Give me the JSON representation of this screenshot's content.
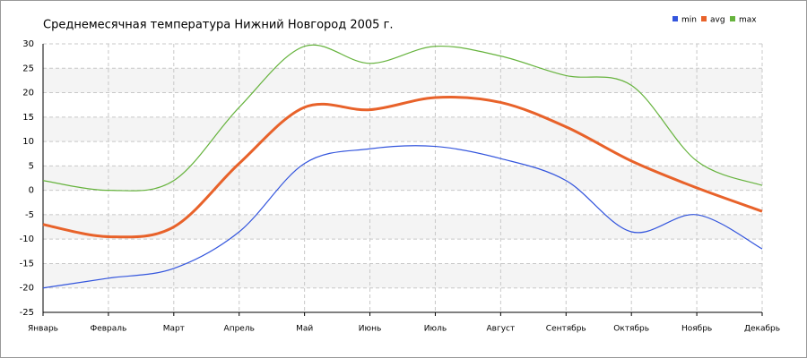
{
  "chart_data": {
    "type": "line",
    "title": "Среднемесячная температура Нижний Новгород  2005 г.",
    "categories": [
      "Январь",
      "Февраль",
      "Март",
      "Апрель",
      "Май",
      "Июнь",
      "Июль",
      "Август",
      "Сентябрь",
      "Октябрь",
      "Ноябрь",
      "Декабрь"
    ],
    "series": [
      {
        "name": "min",
        "color": "#3355dd",
        "values": [
          -20,
          -18,
          -16,
          -8.5,
          5.5,
          8.5,
          9,
          6.5,
          2,
          -8.5,
          -5,
          -12
        ]
      },
      {
        "name": "avg",
        "color": "#e8622a",
        "values": [
          -7,
          -9.5,
          -7.5,
          5.5,
          17,
          16.5,
          19,
          18,
          13,
          6,
          0.5,
          -4.3
        ]
      },
      {
        "name": "max",
        "color": "#66b33d",
        "values": [
          2,
          0,
          2,
          17,
          29.5,
          26,
          29.5,
          27.5,
          23.5,
          21.5,
          6,
          1
        ]
      }
    ],
    "ylim": [
      -25,
      30
    ],
    "yticks": [
      -25,
      -20,
      -15,
      -10,
      -5,
      0,
      5,
      10,
      15,
      20,
      25,
      30
    ],
    "grid": true,
    "legend": "top-right"
  }
}
